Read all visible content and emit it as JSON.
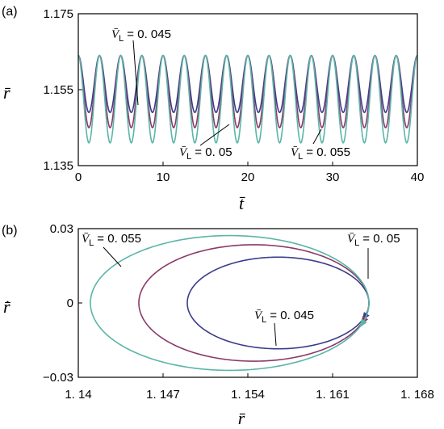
{
  "chart_data": [
    {
      "id": "a",
      "type": "line",
      "panel_label": "(a)",
      "xlabel": "t̄",
      "ylabel": "r̄",
      "xlim": [
        0,
        40
      ],
      "ylim": [
        1.135,
        1.175
      ],
      "xticks": [
        "0",
        "10",
        "20",
        "30",
        "40"
      ],
      "yticks": [
        "1.135",
        "1.155",
        "1.175"
      ],
      "oscillation_period": 2.5,
      "series": [
        {
          "name": "V̄L = 0.045",
          "color": "#3b3b8c",
          "max": 1.164,
          "min": 1.149
        },
        {
          "name": "V̄L = 0.05",
          "color": "#8a3a6a",
          "max": 1.164,
          "min": 1.145
        },
        {
          "name": "V̄L = 0.055",
          "color": "#5bb5a8",
          "max": 1.164,
          "min": 1.141
        }
      ],
      "annotations": [
        {
          "prefix": "V̄",
          "sub": "L",
          "value": "= 0. 045"
        },
        {
          "prefix": "V̄",
          "sub": "L",
          "value": "= 0. 05"
        },
        {
          "prefix": "V̄",
          "sub": "L",
          "value": "= 0. 055"
        }
      ]
    },
    {
      "id": "b",
      "type": "line",
      "panel_label": "(b)",
      "xlabel": "r̄",
      "ylabel": "r̄̇",
      "xlim": [
        1.14,
        1.168
      ],
      "ylim": [
        -0.03,
        0.03
      ],
      "xticks": [
        "1. 14",
        "1. 147",
        "1. 154",
        "1. 161",
        "1. 168"
      ],
      "yticks": [
        "0.03",
        "0",
        "−0.03"
      ],
      "series": [
        {
          "name": "V̄L = 0.045",
          "color": "#3b3b8c",
          "center_r": 1.1565,
          "semi_axis_r": 0.0075,
          "semi_axis_rdot": 0.0185
        },
        {
          "name": "V̄L = 0.05",
          "color": "#8a3a6a",
          "center_r": 1.1545,
          "semi_axis_r": 0.0095,
          "semi_axis_rdot": 0.0235
        },
        {
          "name": "V̄L = 0.055",
          "color": "#5bb5a8",
          "center_r": 1.1525,
          "semi_axis_r": 0.0115,
          "semi_axis_rdot": 0.0272
        }
      ],
      "annotations": [
        {
          "prefix": "V̄",
          "sub": "L",
          "value": "= 0. 055"
        },
        {
          "prefix": "V̄",
          "sub": "L",
          "value": "= 0. 05"
        },
        {
          "prefix": "V̄",
          "sub": "L",
          "value": "= 0. 045"
        }
      ]
    }
  ]
}
